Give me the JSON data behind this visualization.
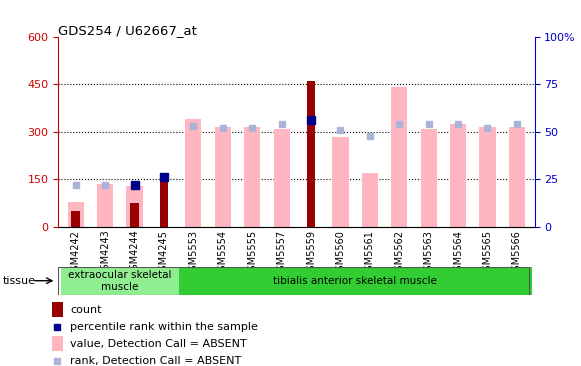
{
  "title": "GDS254 / U62667_at",
  "samples": [
    "GSM4242",
    "GSM4243",
    "GSM4244",
    "GSM4245",
    "GSM5553",
    "GSM5554",
    "GSM5555",
    "GSM5557",
    "GSM5559",
    "GSM5560",
    "GSM5561",
    "GSM5562",
    "GSM5563",
    "GSM5564",
    "GSM5565",
    "GSM5566"
  ],
  "count_values": [
    50,
    0,
    75,
    160,
    0,
    0,
    0,
    0,
    460,
    0,
    0,
    0,
    0,
    0,
    0,
    0
  ],
  "percentile_rank_pct": [
    null,
    null,
    22,
    26,
    null,
    null,
    null,
    null,
    56,
    null,
    null,
    null,
    null,
    null,
    null,
    null
  ],
  "absent_value": [
    80,
    135,
    130,
    0,
    340,
    315,
    315,
    310,
    0,
    285,
    170,
    440,
    310,
    325,
    315,
    315
  ],
  "absent_rank_pct": [
    22,
    22,
    22,
    null,
    53,
    52,
    52,
    54,
    null,
    51,
    48,
    54,
    54,
    54,
    52,
    54
  ],
  "tissue_groups": [
    {
      "label": "extraocular skeletal\nmuscle",
      "start": 0,
      "end": 4,
      "color": "#90ee90"
    },
    {
      "label": "tibialis anterior skeletal muscle",
      "start": 4,
      "end": 16,
      "color": "#32cd32"
    }
  ],
  "ylim_left": [
    0,
    600
  ],
  "ylim_right": [
    0,
    100
  ],
  "left_yticks": [
    0,
    150,
    300,
    450,
    600
  ],
  "right_yticks": [
    0,
    25,
    50,
    75,
    100
  ],
  "right_yticklabels": [
    "0",
    "25",
    "50",
    "75",
    "100%"
  ],
  "bar_width": 0.55,
  "count_color": "#990000",
  "percentile_color": "#00008b",
  "absent_value_color": "#ffb6c1",
  "absent_rank_color": "#aab4d8",
  "left_axis_color": "#cc0000",
  "right_axis_color": "#0000cc",
  "grid_color": "#000000",
  "bg_color": "#ffffff",
  "plot_bg": "#ffffff"
}
